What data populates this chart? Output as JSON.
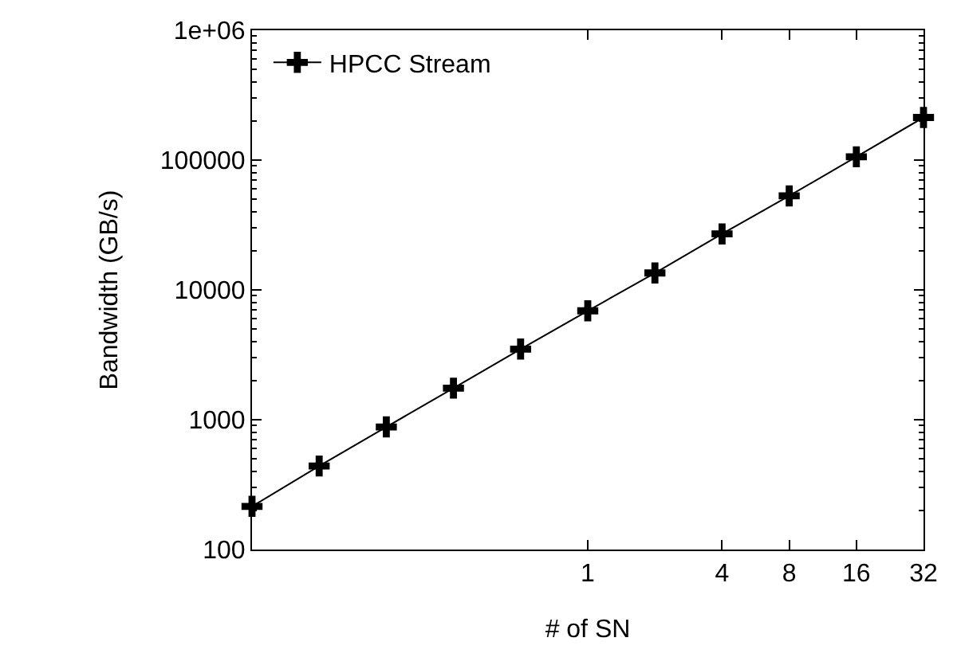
{
  "chart_data": {
    "type": "line",
    "xlabel": "# of SN",
    "ylabel": "Bandwidth (GB/s)",
    "log": "xy",
    "x": [
      0.03125,
      0.0625,
      0.125,
      0.25,
      0.5,
      1,
      2,
      4,
      8,
      16,
      32
    ],
    "series": [
      {
        "name": "HPCC Stream",
        "color": "#000000",
        "values": [
          215,
          440,
          880,
          1750,
          3500,
          6900,
          13500,
          27000,
          53000,
          106000,
          213000
        ]
      }
    ],
    "xlim": [
      0.03125,
      32
    ],
    "xticks": [
      1,
      4,
      8,
      16,
      32
    ],
    "ylim": [
      100,
      1000000
    ],
    "yticks": [
      100,
      1000,
      10000,
      100000,
      {
        "value": 1000000,
        "label": "1e+06"
      }
    ],
    "marker": "cross",
    "line_style": "solid",
    "legend": "top left"
  }
}
